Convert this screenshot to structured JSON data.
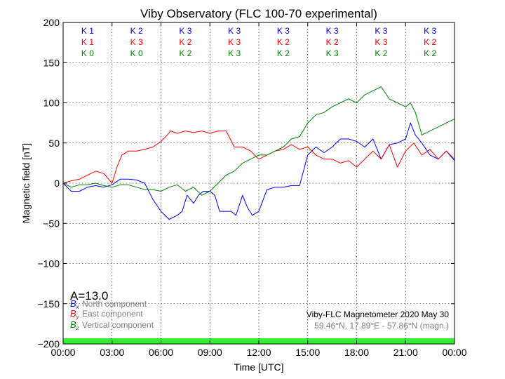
{
  "chart_data": {
    "type": "line",
    "title": "Viby Observatory (FLC 100-70 experimental)",
    "xlabel": "Time [UTC]",
    "ylabel": "Magnetic field [nT]",
    "xlim": [
      0,
      24
    ],
    "ylim": [
      -200,
      200
    ],
    "x_ticks": [
      {
        "value": 0,
        "label": "00:00"
      },
      {
        "value": 3,
        "label": "03:00"
      },
      {
        "value": 6,
        "label": "06:00"
      },
      {
        "value": 9,
        "label": "09:00"
      },
      {
        "value": 12,
        "label": "12:00"
      },
      {
        "value": 15,
        "label": "15:00"
      },
      {
        "value": 18,
        "label": "18:00"
      },
      {
        "value": 21,
        "label": "21:00"
      },
      {
        "value": 24,
        "label": "00:00"
      }
    ],
    "y_ticks": [
      {
        "value": 200,
        "label": "200"
      },
      {
        "value": 150,
        "label": "150"
      },
      {
        "value": 100,
        "label": "100"
      },
      {
        "value": 50,
        "label": "50"
      },
      {
        "value": 0,
        "label": "0"
      },
      {
        "value": -50,
        "label": "−50"
      },
      {
        "value": -100,
        "label": "−100"
      },
      {
        "value": -150,
        "label": "−150"
      },
      {
        "value": -200,
        "label": "−200"
      }
    ],
    "grid": true,
    "series": [
      {
        "color": "#0000ff",
        "x": [
          0,
          0.5,
          1,
          1.5,
          2,
          2.5,
          3,
          3.5,
          4,
          4.5,
          5,
          5.5,
          6,
          6.5,
          7,
          7.3,
          7.6,
          8,
          8.3,
          8.6,
          9,
          9.3,
          9.6,
          10,
          10.3,
          10.6,
          11,
          11.3,
          11.6,
          12,
          12.5,
          13,
          13.5,
          14,
          14.5,
          15,
          15.5,
          16,
          16.5,
          17,
          17.5,
          18,
          18.5,
          19,
          19.5,
          20,
          20.5,
          21,
          21.3,
          21.6,
          22,
          22.5,
          23,
          23.5,
          24
        ],
        "y": [
          0,
          -10,
          -10,
          -5,
          -3,
          -5,
          -2,
          5,
          5,
          4,
          0,
          -20,
          -35,
          -45,
          -40,
          -35,
          -15,
          -25,
          -15,
          -10,
          -10,
          -15,
          -35,
          -35,
          -35,
          -40,
          -15,
          -30,
          -40,
          -35,
          -8,
          -5,
          -5,
          -3,
          -3,
          35,
          45,
          38,
          45,
          55,
          55,
          52,
          45,
          55,
          30,
          48,
          50,
          55,
          75,
          60,
          50,
          35,
          30,
          40,
          28
        ]
      },
      {
        "color": "#ff0000",
        "x": [
          0,
          0.5,
          1,
          1.5,
          2,
          2.5,
          3,
          3.3,
          3.6,
          4,
          4.5,
          5,
          5.5,
          6,
          6.3,
          6.6,
          7,
          7.5,
          8,
          8.5,
          9,
          9.5,
          10,
          10.5,
          11,
          11.5,
          12,
          12.5,
          13,
          13.5,
          14,
          14.5,
          15,
          15.5,
          16,
          16.5,
          17,
          17.5,
          18,
          18.5,
          19,
          19.5,
          20,
          20.5,
          21,
          21.5,
          22,
          22.5,
          23,
          23.5,
          24
        ],
        "y": [
          0,
          3,
          5,
          10,
          15,
          12,
          0,
          20,
          35,
          40,
          40,
          42,
          45,
          52,
          58,
          65,
          62,
          65,
          63,
          65,
          62,
          65,
          65,
          45,
          45,
          40,
          30,
          35,
          40,
          42,
          48,
          42,
          45,
          35,
          30,
          30,
          25,
          28,
          20,
          30,
          40,
          30,
          48,
          20,
          40,
          50,
          35,
          42,
          30,
          40,
          30
        ]
      },
      {
        "color": "#008000",
        "x": [
          0,
          0.5,
          1,
          1.5,
          2,
          2.5,
          3,
          3.5,
          4,
          4.5,
          5,
          5.5,
          6,
          6.5,
          7,
          7.5,
          8,
          8.5,
          9,
          9.5,
          10,
          10.5,
          11,
          11.5,
          12,
          12.5,
          13,
          13.5,
          14,
          14.5,
          15,
          15.5,
          16,
          16.5,
          17,
          17.5,
          18,
          18.5,
          19,
          19.5,
          20,
          20.5,
          21,
          21.3,
          21.6,
          22,
          22.5,
          23,
          23.5,
          24
        ],
        "y": [
          0,
          -5,
          -2,
          -2,
          0,
          -3,
          -5,
          -2,
          -2,
          -5,
          -8,
          -8,
          -10,
          -5,
          -2,
          -10,
          -5,
          -15,
          -10,
          0,
          10,
          15,
          25,
          30,
          35,
          35,
          40,
          45,
          55,
          58,
          75,
          85,
          88,
          95,
          100,
          105,
          100,
          110,
          115,
          120,
          105,
          100,
          95,
          100,
          88,
          60,
          65,
          70,
          75,
          80
        ]
      }
    ],
    "k_index_rows": [
      {
        "color": "#0000cc",
        "labels": [
          "K 1",
          "K 2",
          "K 3",
          "K 3",
          "K 3",
          "K 3",
          "K 3",
          "K 3"
        ]
      },
      {
        "color": "#ff0000",
        "labels": [
          "K 1",
          "K 3",
          "K 2",
          "K 3",
          "K 2",
          "K 2",
          "K 3",
          "K 2"
        ]
      },
      {
        "color": "#008000",
        "labels": [
          "K 0",
          "K 0",
          "K 2",
          "K 3",
          "K 2",
          "K 3",
          "K 2",
          "K 2"
        ]
      }
    ],
    "a_index": "A=13.0",
    "legend": [
      {
        "symbol": "B",
        "sub": "x",
        "text": "North component",
        "color": "#0000ff"
      },
      {
        "symbol": "B",
        "sub": "y",
        "text": "East component",
        "color": "#ff0000"
      },
      {
        "symbol": "B",
        "sub": "z",
        "text": "Vertical component",
        "color": "#008000"
      }
    ],
    "annotation_main": "Viby-FLC Magnetometer 2020 May 30",
    "annotation_coords": "59.46°N, 17.89°E - 57.86°N (magn.)",
    "status_bar_color": "#33ee33",
    "status_bar_range": [
      -200,
      -193
    ]
  }
}
